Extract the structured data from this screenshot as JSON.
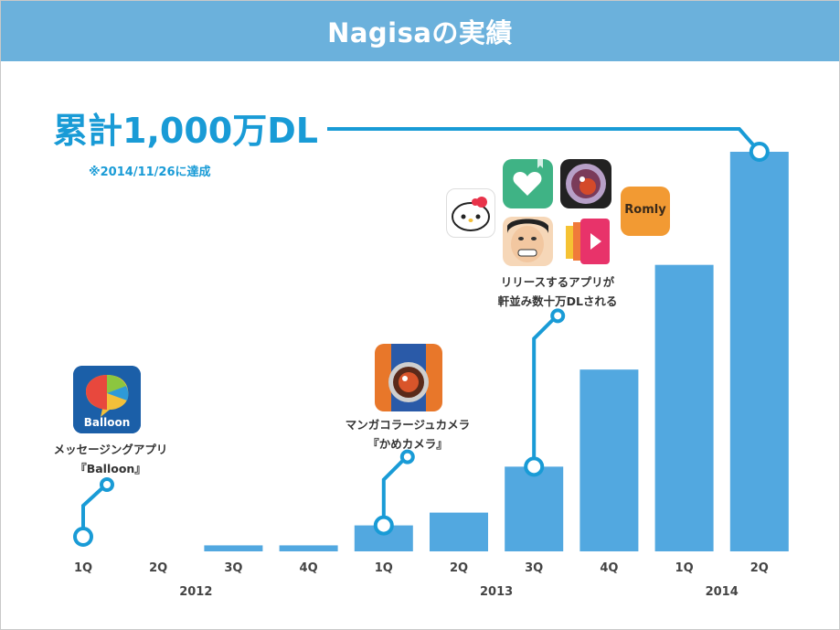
{
  "header": {
    "title": "Nagisaの実績"
  },
  "headline": {
    "text": "累計1,000万DL",
    "note": "※2014/11/26に達成"
  },
  "annotations": {
    "balloon": {
      "line1": "メッセージングアプリ",
      "line2": "『Balloon』",
      "icon_text": "Balloon"
    },
    "kame": {
      "line1": "マンガコラージュカメラ",
      "line2": "『かめカメラ』"
    },
    "apps": {
      "line1": "リリースするアプリが",
      "line2": "軒並み数十万DLされる",
      "romly_text": "Romly"
    }
  },
  "colors": {
    "bar": "#52a8e0",
    "accent": "#199bd6",
    "header": "#6bb1dc"
  },
  "chart_data": {
    "type": "bar",
    "categories": [
      "1Q",
      "2Q",
      "3Q",
      "4Q",
      "1Q",
      "2Q",
      "3Q",
      "4Q",
      "1Q",
      "2Q"
    ],
    "year_groups": [
      {
        "label": "2012",
        "quarters": 4
      },
      {
        "label": "2013",
        "quarters": 4
      },
      {
        "label": "2014",
        "quarters": 2
      }
    ],
    "values": [
      0,
      0,
      0.15,
      0.15,
      0.65,
      0.97,
      2.12,
      4.55,
      7.17,
      10.0
    ],
    "ylim": [
      0,
      10.5
    ],
    "grid": false,
    "milestones": [
      {
        "quarter_index": 0,
        "label": "Balloon"
      },
      {
        "quarter_index": 4,
        "label": "かめカメラ"
      },
      {
        "quarter_index": 6,
        "label": "リリースするアプリ"
      },
      {
        "quarter_index": 9,
        "label": "累計1,000万DL"
      }
    ]
  }
}
